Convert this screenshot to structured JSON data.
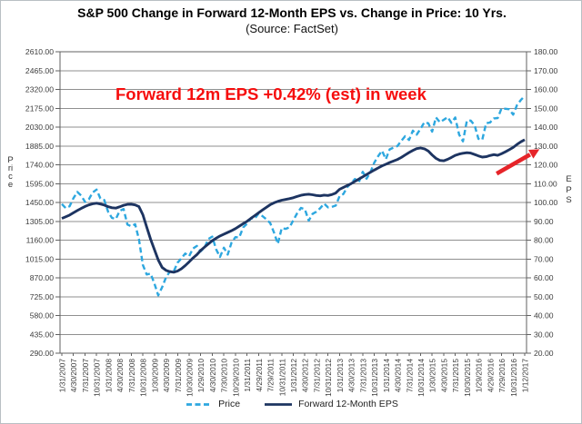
{
  "chart_data": {
    "type": "line",
    "title": "S&P 500 Change in Forward 12-Month EPS vs. Change in Price: 10 Yrs.",
    "subtitle": "(Source: FactSet)",
    "annotation": {
      "text": "Forward 12m EPS +0.42% (est) in week",
      "color": "#f60d0d"
    },
    "arrow": {
      "color": "#e62429",
      "from": {
        "x_frac": 0.936,
        "eps": 115.3
      },
      "to": {
        "x_frac": 1.016,
        "eps": 126.6
      }
    },
    "grid": true,
    "legend_position": "bottom",
    "left_axis": {
      "label": "Price",
      "min": 290,
      "max": 2610,
      "tick_step": 145,
      "ticks": [
        "2610.00",
        "2465.00",
        "2320.00",
        "2175.00",
        "2030.00",
        "1885.00",
        "1740.00",
        "1595.00",
        "1450.00",
        "1305.00",
        "1160.00",
        "1015.00",
        "870.00",
        "725.00",
        "580.00",
        "435.00",
        "290.00"
      ]
    },
    "right_axis": {
      "label": "EPS",
      "min": 20,
      "max": 180,
      "tick_step": 10,
      "ticks": [
        "180.00",
        "170.00",
        "160.00",
        "150.00",
        "140.00",
        "130.00",
        "120.00",
        "110.00",
        "100.00",
        "90.00",
        "80.00",
        "70.00",
        "60.00",
        "50.00",
        "40.00",
        "30.00",
        "20.00"
      ]
    },
    "x_tick_labels": [
      "1/31/2007",
      "4/30/2007",
      "7/31/2007",
      "10/31/2007",
      "1/31/2008",
      "4/30/2008",
      "7/31/2008",
      "10/31/2008",
      "1/30/2009",
      "4/30/2009",
      "7/31/2009",
      "10/30/2009",
      "1/29/2010",
      "4/30/2010",
      "7/30/2010",
      "10/29/2010",
      "1/31/2011",
      "4/29/2011",
      "7/29/2011",
      "10/31/2011",
      "1/31/2012",
      "4/30/2012",
      "7/31/2012",
      "10/31/2012",
      "1/31/2013",
      "4/30/2013",
      "7/31/2013",
      "10/31/2013",
      "1/31/2014",
      "4/30/2014",
      "7/31/2014",
      "10/31/2014",
      "1/30/2015",
      "4/30/2015",
      "7/31/2015",
      "10/30/2015",
      "1/29/2016",
      "4/29/2016",
      "7/29/2016",
      "10/31/2016",
      "1/12/2017"
    ],
    "sampling_note": "values are monthly estimates read from the chart, Jan 2007 through Jan 12 2017",
    "series": [
      {
        "name": "Price",
        "axis": "left",
        "style": "dashed",
        "color": "#2da7df",
        "values": [
          1438,
          1407,
          1421,
          1482,
          1531,
          1503,
          1455,
          1474,
          1527,
          1549,
          1481,
          1468,
          1379,
          1331,
          1323,
          1386,
          1400,
          1280,
          1267,
          1283,
          1166,
          969,
          896,
          903,
          826,
          735,
          798,
          873,
          919,
          919,
          987,
          1021,
          1057,
          1036,
          1096,
          1115,
          1074,
          1104,
          1169,
          1187,
          1089,
          1031,
          1102,
          1049,
          1141,
          1183,
          1181,
          1258,
          1286,
          1327,
          1326,
          1364,
          1345,
          1321,
          1292,
          1219,
          1131,
          1253,
          1247,
          1258,
          1312,
          1366,
          1408,
          1398,
          1310,
          1362,
          1379,
          1407,
          1441,
          1412,
          1416,
          1426,
          1498,
          1515,
          1569,
          1598,
          1631,
          1606,
          1686,
          1633,
          1682,
          1757,
          1806,
          1848,
          1783,
          1859,
          1872,
          1884,
          1924,
          1960,
          1931,
          2003,
          1972,
          2018,
          2068,
          2059,
          1995,
          2105,
          2068,
          2086,
          2107,
          2063,
          2104,
          1972,
          1920,
          2079,
          2080,
          2044,
          1940,
          1932,
          2060,
          2065,
          2097,
          2099,
          2174,
          2171,
          2168,
          2126,
          2199,
          2239,
          2270
        ]
      },
      {
        "name": "Forward 12-Month EPS",
        "axis": "right",
        "style": "solid",
        "color": "#1d3461",
        "values": [
          91.5,
          92.4,
          93.3,
          94.5,
          95.7,
          96.8,
          97.9,
          98.7,
          99.3,
          99.6,
          99.2,
          98.6,
          97.8,
          97.2,
          97.0,
          97.7,
          98.5,
          99.0,
          99.1,
          98.7,
          97.8,
          93.5,
          87.0,
          80.5,
          75.0,
          69.5,
          65.5,
          64.0,
          63.3,
          63.0,
          63.6,
          64.8,
          66.5,
          68.5,
          70.5,
          72.3,
          74.5,
          76.3,
          78.0,
          79.7,
          81.0,
          82.2,
          83.2,
          84.1,
          85.0,
          86.1,
          87.4,
          88.7,
          90.0,
          91.5,
          93.0,
          94.5,
          96.0,
          97.4,
          98.8,
          99.8,
          100.6,
          101.2,
          101.6,
          102.0,
          102.5,
          103.2,
          103.8,
          104.2,
          104.4,
          104.1,
          103.7,
          103.5,
          103.9,
          103.7,
          104.2,
          105.0,
          107.0,
          108.0,
          109.0,
          110.0,
          111.2,
          112.4,
          113.6,
          114.8,
          116.0,
          117.2,
          118.3,
          119.4,
          120.3,
          121.2,
          122.0,
          122.8,
          123.9,
          125.2,
          126.5,
          127.6,
          128.6,
          128.9,
          128.5,
          127.3,
          125.2,
          123.4,
          122.3,
          122.1,
          122.9,
          123.9,
          125.0,
          125.7,
          126.1,
          126.4,
          126.2,
          125.5,
          124.7,
          124.1,
          124.3,
          124.9,
          125.4,
          125.0,
          125.9,
          126.9,
          128.0,
          129.2,
          130.8,
          132.2,
          133.3
        ]
      }
    ]
  }
}
